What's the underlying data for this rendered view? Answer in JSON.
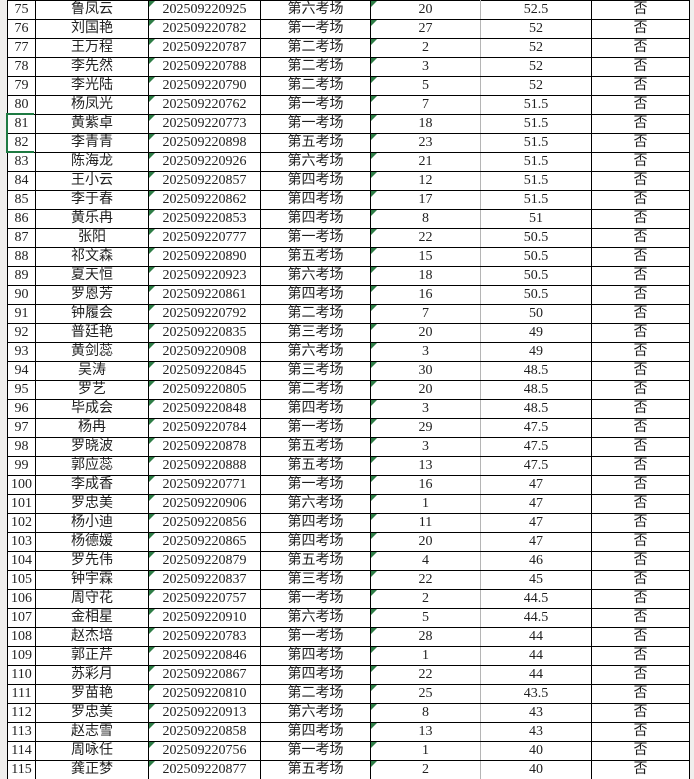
{
  "app": {
    "kind": "spreadsheet-grid",
    "visible_row_range": "75-115"
  },
  "colors": {
    "page_background": "#f0efed",
    "cell_background": "#ffffff",
    "grid_border": "#000000",
    "faint_gridline": "#b5b5b5",
    "text": "#1f1f1f",
    "text_flag_triangle": "#2e7d46",
    "selection_outline": "#1e7a42"
  },
  "selection": {
    "rows": "81-82",
    "column": "row-number"
  },
  "table": {
    "columns": [
      {
        "key": "num",
        "name": "row-number"
      },
      {
        "key": "name",
        "name": "candidate-name"
      },
      {
        "key": "id",
        "name": "exam-id",
        "has_triangle": true
      },
      {
        "key": "room",
        "name": "exam-room"
      },
      {
        "key": "seat",
        "name": "seat-number",
        "has_triangle": true
      },
      {
        "key": "score",
        "name": "score"
      },
      {
        "key": "answer",
        "name": "flag"
      }
    ],
    "rows": [
      {
        "num": "75",
        "name": "鲁凤云",
        "id": "202509220925",
        "room": "第六考场",
        "seat": "20",
        "score": "52.5",
        "answer": "否"
      },
      {
        "num": "76",
        "name": "刘国艳",
        "id": "202509220782",
        "room": "第一考场",
        "seat": "27",
        "score": "52",
        "answer": "否"
      },
      {
        "num": "77",
        "name": "王万程",
        "id": "202509220787",
        "room": "第二考场",
        "seat": "2",
        "score": "52",
        "answer": "否"
      },
      {
        "num": "78",
        "name": "李先然",
        "id": "202509220788",
        "room": "第二考场",
        "seat": "3",
        "score": "52",
        "answer": "否"
      },
      {
        "num": "79",
        "name": "李光陆",
        "id": "202509220790",
        "room": "第二考场",
        "seat": "5",
        "score": "52",
        "answer": "否"
      },
      {
        "num": "80",
        "name": "杨凤光",
        "id": "202509220762",
        "room": "第一考场",
        "seat": "7",
        "score": "51.5",
        "answer": "否"
      },
      {
        "num": "81",
        "name": "黄紫卓",
        "id": "202509220773",
        "room": "第一考场",
        "seat": "18",
        "score": "51.5",
        "answer": "否"
      },
      {
        "num": "82",
        "name": "李青青",
        "id": "202509220898",
        "room": "第五考场",
        "seat": "23",
        "score": "51.5",
        "answer": "否"
      },
      {
        "num": "83",
        "name": "陈海龙",
        "id": "202509220926",
        "room": "第六考场",
        "seat": "21",
        "score": "51.5",
        "answer": "否"
      },
      {
        "num": "84",
        "name": "王小云",
        "id": "202509220857",
        "room": "第四考场",
        "seat": "12",
        "score": "51.5",
        "answer": "否"
      },
      {
        "num": "85",
        "name": "李于春",
        "id": "202509220862",
        "room": "第四考场",
        "seat": "17",
        "score": "51.5",
        "answer": "否"
      },
      {
        "num": "86",
        "name": "黄乐冉",
        "id": "202509220853",
        "room": "第四考场",
        "seat": "8",
        "score": "51",
        "answer": "否"
      },
      {
        "num": "87",
        "name": "张阳",
        "id": "202509220777",
        "room": "第一考场",
        "seat": "22",
        "score": "50.5",
        "answer": "否"
      },
      {
        "num": "88",
        "name": "祁文森",
        "id": "202509220890",
        "room": "第五考场",
        "seat": "15",
        "score": "50.5",
        "answer": "否"
      },
      {
        "num": "89",
        "name": "夏天恒",
        "id": "202509220923",
        "room": "第六考场",
        "seat": "18",
        "score": "50.5",
        "answer": "否"
      },
      {
        "num": "90",
        "name": "罗恩芳",
        "id": "202509220861",
        "room": "第四考场",
        "seat": "16",
        "score": "50.5",
        "answer": "否"
      },
      {
        "num": "91",
        "name": "钟履会",
        "id": "202509220792",
        "room": "第二考场",
        "seat": "7",
        "score": "50",
        "answer": "否"
      },
      {
        "num": "92",
        "name": "普廷艳",
        "id": "202509220835",
        "room": "第三考场",
        "seat": "20",
        "score": "49",
        "answer": "否"
      },
      {
        "num": "93",
        "name": "黄剑蕊",
        "id": "202509220908",
        "room": "第六考场",
        "seat": "3",
        "score": "49",
        "answer": "否"
      },
      {
        "num": "94",
        "name": "吴涛",
        "id": "202509220845",
        "room": "第三考场",
        "seat": "30",
        "score": "48.5",
        "answer": "否"
      },
      {
        "num": "95",
        "name": "罗艺",
        "id": "202509220805",
        "room": "第二考场",
        "seat": "20",
        "score": "48.5",
        "answer": "否"
      },
      {
        "num": "96",
        "name": "毕成会",
        "id": "202509220848",
        "room": "第四考场",
        "seat": "3",
        "score": "48.5",
        "answer": "否"
      },
      {
        "num": "97",
        "name": "杨冉",
        "id": "202509220784",
        "room": "第一考场",
        "seat": "29",
        "score": "47.5",
        "answer": "否"
      },
      {
        "num": "98",
        "name": "罗晓波",
        "id": "202509220878",
        "room": "第五考场",
        "seat": "3",
        "score": "47.5",
        "answer": "否"
      },
      {
        "num": "99",
        "name": "郭应蕊",
        "id": "202509220888",
        "room": "第五考场",
        "seat": "13",
        "score": "47.5",
        "answer": "否"
      },
      {
        "num": "100",
        "name": "李成香",
        "id": "202509220771",
        "room": "第一考场",
        "seat": "16",
        "score": "47",
        "answer": "否"
      },
      {
        "num": "101",
        "name": "罗忠美",
        "id": "202509220906",
        "room": "第六考场",
        "seat": "1",
        "score": "47",
        "answer": "否"
      },
      {
        "num": "102",
        "name": "杨小迪",
        "id": "202509220856",
        "room": "第四考场",
        "seat": "11",
        "score": "47",
        "answer": "否"
      },
      {
        "num": "103",
        "name": "杨德媛",
        "id": "202509220865",
        "room": "第四考场",
        "seat": "20",
        "score": "47",
        "answer": "否"
      },
      {
        "num": "104",
        "name": "罗先伟",
        "id": "202509220879",
        "room": "第五考场",
        "seat": "4",
        "score": "46",
        "answer": "否"
      },
      {
        "num": "105",
        "name": "钟宇霖",
        "id": "202509220837",
        "room": "第三考场",
        "seat": "22",
        "score": "45",
        "answer": "否"
      },
      {
        "num": "106",
        "name": "周守花",
        "id": "202509220757",
        "room": "第一考场",
        "seat": "2",
        "score": "44.5",
        "answer": "否"
      },
      {
        "num": "107",
        "name": "金相星",
        "id": "202509220910",
        "room": "第六考场",
        "seat": "5",
        "score": "44.5",
        "answer": "否"
      },
      {
        "num": "108",
        "name": "赵杰培",
        "id": "202509220783",
        "room": "第一考场",
        "seat": "28",
        "score": "44",
        "answer": "否"
      },
      {
        "num": "109",
        "name": "郭正芹",
        "id": "202509220846",
        "room": "第四考场",
        "seat": "1",
        "score": "44",
        "answer": "否"
      },
      {
        "num": "110",
        "name": "苏彩月",
        "id": "202509220867",
        "room": "第四考场",
        "seat": "22",
        "score": "44",
        "answer": "否"
      },
      {
        "num": "111",
        "name": "罗苗艳",
        "id": "202509220810",
        "room": "第二考场",
        "seat": "25",
        "score": "43.5",
        "answer": "否"
      },
      {
        "num": "112",
        "name": "罗忠美",
        "id": "202509220913",
        "room": "第六考场",
        "seat": "8",
        "score": "43",
        "answer": "否"
      },
      {
        "num": "113",
        "name": "赵志雪",
        "id": "202509220858",
        "room": "第四考场",
        "seat": "13",
        "score": "43",
        "answer": "否"
      },
      {
        "num": "114",
        "name": "周咏任",
        "id": "202509220756",
        "room": "第一考场",
        "seat": "1",
        "score": "40",
        "answer": "否"
      },
      {
        "num": "115",
        "name": "龚正梦",
        "id": "202509220877",
        "room": "第五考场",
        "seat": "2",
        "score": "40",
        "answer": "否"
      }
    ]
  }
}
